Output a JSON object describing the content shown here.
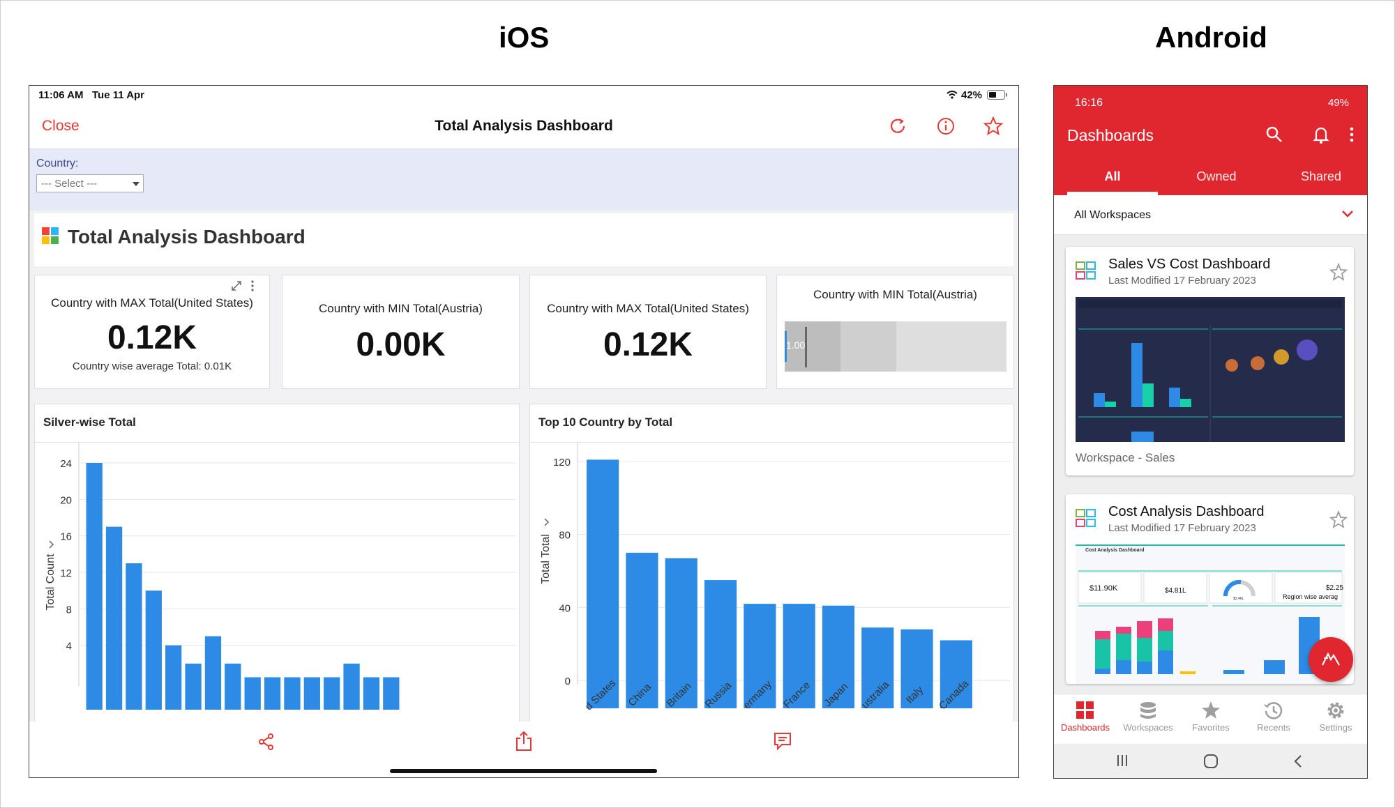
{
  "labels": {
    "ios": "iOS",
    "android": "Android"
  },
  "ios": {
    "status": {
      "time": "11:06 AM",
      "date": "Tue 11 Apr",
      "battery": "42%"
    },
    "nav": {
      "close": "Close",
      "title": "Total Analysis Dashboard"
    },
    "filter": {
      "label": "Country:",
      "placeholder": "--- Select ---"
    },
    "dashboard_title": "Total Analysis Dashboard",
    "kpis": [
      {
        "title": "Country with MAX Total(United States)",
        "value": "0.12K",
        "sub": "Country wise average Total: 0.01K"
      },
      {
        "title": "Country with MIN Total(Austria)",
        "value": "0.00K"
      },
      {
        "title": "Country with MAX Total(United States)",
        "value": "0.12K"
      },
      {
        "title": "Country with MIN Total(Austria)",
        "bullet_label": "1.00"
      }
    ],
    "colors": {
      "accent": "#e53935",
      "bar": "#2d8ae5",
      "filter_bg": "#e6e9f8"
    },
    "icons": [
      "refresh-icon",
      "info-icon",
      "star-icon",
      "share-icon",
      "export-icon",
      "comment-icon"
    ]
  },
  "chart_data": [
    {
      "type": "bar",
      "title": "Silver-wise Total",
      "ylabel": "Total Count",
      "yticks": [
        4,
        8,
        12,
        16,
        20,
        24
      ],
      "ylim": [
        0,
        24
      ],
      "values": [
        24,
        17,
        13,
        10,
        4,
        2,
        5,
        2,
        0.5,
        0.5,
        0.5,
        0.5,
        0.5,
        2,
        0.5,
        0.5
      ]
    },
    {
      "type": "bar",
      "title": "Top 10 Country by Total",
      "ylabel": "Total Total",
      "yticks": [
        0,
        40,
        80,
        120
      ],
      "ylim": [
        0,
        120
      ],
      "categories": [
        "United States",
        "China",
        "Great Britain",
        "Russia",
        "Germany",
        "France",
        "Japan",
        "Australia",
        "Italy",
        "Canada"
      ],
      "category_labels": [
        "d States",
        "China",
        "Britain",
        "Russia",
        "ermany",
        "France",
        "Japan",
        "ustralia",
        "Italy",
        "Canada"
      ],
      "values": [
        121,
        70,
        67,
        55,
        42,
        42,
        41,
        29,
        28,
        22
      ]
    }
  ],
  "android": {
    "status": {
      "time": "16:16",
      "battery": "49%"
    },
    "title": "Dashboards",
    "tabs": [
      "All",
      "Owned",
      "Shared"
    ],
    "workspace": "All Workspaces",
    "cards": [
      {
        "title": "Sales VS Cost Dashboard",
        "modified": "Last Modified 17 February 2023",
        "workspace": "Workspace - Sales"
      },
      {
        "title": "Cost Analysis Dashboard",
        "modified": "Last Modified 17 February 2023",
        "thumb": {
          "header": "Cost Analysis Dashboard",
          "k1": "$11.90K",
          "k2": "$4.81L",
          "k3": "$3.46L",
          "k4": "$2.25",
          "k4_label": "Region wise averag"
        }
      }
    ],
    "bottom_nav": [
      "Dashboards",
      "Workspaces",
      "Favorites",
      "Recents",
      "Settings"
    ],
    "colors": {
      "brand": "#e0272f"
    }
  }
}
